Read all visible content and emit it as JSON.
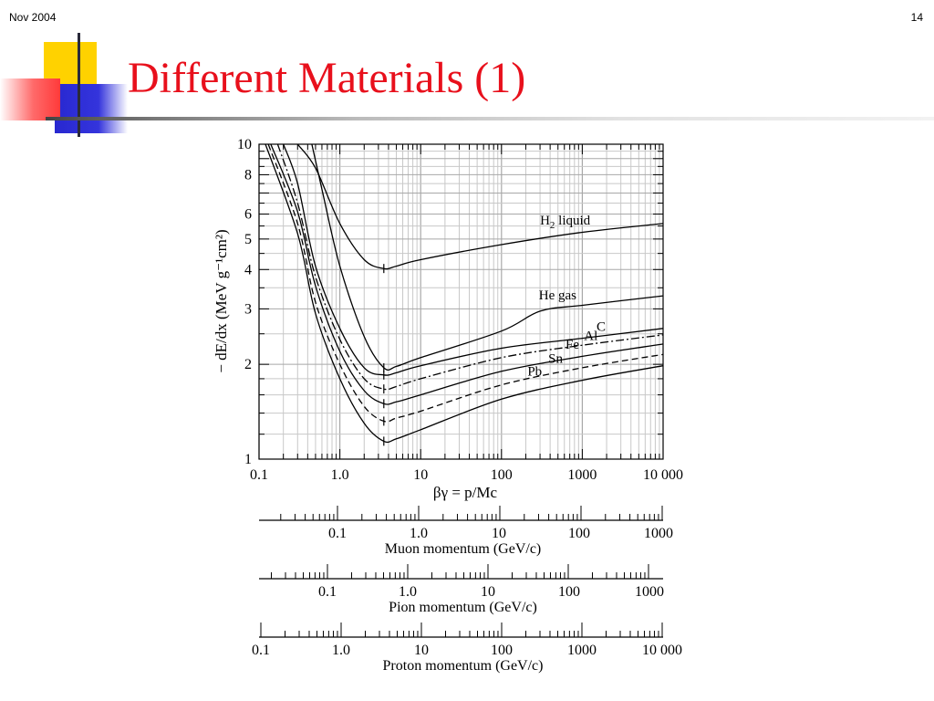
{
  "slide": {
    "header_left": "Nov 2004",
    "header_right": "14",
    "title": "Different Materials (1)",
    "colors": {
      "title": "#e8101c",
      "deco_yellow": "#ffd200",
      "deco_blue": "#3030d8",
      "deco_red": "#ff4a4a",
      "rule": "#d8d8d8",
      "grid": "#c8c8c8"
    }
  },
  "chart_data": {
    "type": "line",
    "x_scale": "log",
    "y_scale": "log",
    "xlim": [
      0.1,
      10000
    ],
    "ylim": [
      1,
      10
    ],
    "xlabel": "βγ = p/Mc",
    "ylabel": "− dE/dx (MeV g⁻¹cm²)",
    "x_tick_labels": [
      "0.1",
      "1.0",
      "10",
      "100",
      "1000",
      "10 000"
    ],
    "y_tick_labels": [
      "1",
      "2",
      "3",
      "4",
      "5",
      "6",
      "8",
      "10"
    ],
    "grid": true,
    "series": [
      {
        "name": "H2 liquid",
        "dash": "solid",
        "x": [
          0.3,
          0.5,
          1,
          2,
          3.5,
          5,
          10,
          100,
          1000,
          10000
        ],
        "y": [
          10,
          8.4,
          5.6,
          4.3,
          4.03,
          4.1,
          4.3,
          4.8,
          5.25,
          5.6
        ]
      },
      {
        "name": "He gas",
        "dash": "solid",
        "x": [
          0.45,
          0.6,
          1,
          2,
          3.5,
          5,
          10,
          100,
          300,
          1000,
          10000
        ],
        "y": [
          10,
          7.2,
          4.1,
          2.45,
          1.95,
          1.97,
          2.1,
          2.55,
          2.95,
          3.08,
          3.3
        ]
      },
      {
        "name": "C",
        "dash": "solid",
        "x": [
          0.2,
          0.3,
          0.5,
          1,
          2,
          3.5,
          5,
          10,
          100,
          1000,
          10000
        ],
        "y": [
          10,
          7.5,
          4.1,
          2.6,
          1.95,
          1.85,
          1.88,
          1.98,
          2.25,
          2.42,
          2.6
        ]
      },
      {
        "name": "Al",
        "dash": "dashdot",
        "x": [
          0.17,
          0.3,
          0.5,
          1,
          2,
          3.5,
          5,
          10,
          100,
          1000,
          10000
        ],
        "y": [
          10,
          6.5,
          3.8,
          2.4,
          1.8,
          1.67,
          1.7,
          1.8,
          2.1,
          2.3,
          2.48
        ]
      },
      {
        "name": "Fe",
        "dash": "solid",
        "x": [
          0.14,
          0.3,
          0.5,
          1,
          2,
          3.5,
          5,
          10,
          100,
          1000,
          10000
        ],
        "y": [
          10,
          6.1,
          3.55,
          2.2,
          1.65,
          1.5,
          1.52,
          1.6,
          1.9,
          2.12,
          2.32
        ]
      },
      {
        "name": "Sn",
        "dash": "dashed",
        "x": [
          0.13,
          0.3,
          0.5,
          1,
          2,
          3.5,
          5,
          10,
          100,
          1000,
          10000
        ],
        "y": [
          10,
          5.6,
          3.15,
          2.0,
          1.47,
          1.32,
          1.35,
          1.42,
          1.72,
          1.95,
          2.15
        ]
      },
      {
        "name": "Pb",
        "dash": "solid",
        "x": [
          0.12,
          0.3,
          0.5,
          1,
          2,
          3.5,
          5,
          10,
          100,
          1000,
          10000
        ],
        "y": [
          10,
          5.2,
          2.9,
          1.8,
          1.3,
          1.14,
          1.16,
          1.24,
          1.55,
          1.78,
          1.98
        ]
      }
    ],
    "minima_x": [
      3.5,
      3.5,
      3.5,
      3.5,
      3.5,
      3.5,
      3.5
    ],
    "series_labels": [
      {
        "text": "H",
        "sub": "2",
        "rest": " liquid"
      },
      {
        "text": "He gas",
        "sub": "",
        "rest": ""
      },
      {
        "text": "C",
        "sub": "",
        "rest": ""
      },
      {
        "text": "Al",
        "sub": "",
        "rest": ""
      },
      {
        "text": "Fe",
        "sub": "",
        "rest": ""
      },
      {
        "text": "Sn",
        "sub": "",
        "rest": ""
      },
      {
        "text": "Pb",
        "sub": "",
        "rest": ""
      }
    ],
    "momentum_scales": [
      {
        "label": "Muon momentum (GeV/c)",
        "tick_labels": [
          "0.1",
          "1.0",
          "10",
          "100",
          "1000"
        ],
        "decade_values": [
          0.1,
          1,
          10,
          100,
          1000
        ]
      },
      {
        "label": "Pion momentum (GeV/c)",
        "tick_labels": [
          "0.1",
          "1.0",
          "10",
          "100",
          "1000"
        ],
        "decade_values": [
          0.1,
          1,
          10,
          100,
          1000
        ]
      },
      {
        "label": "Proton momentum (GeV/c)",
        "tick_labels": [
          "0.1",
          "1.0",
          "10",
          "100",
          "1000",
          "10 000"
        ],
        "decade_values": [
          0.1,
          1,
          10,
          100,
          1000,
          10000
        ]
      }
    ]
  }
}
